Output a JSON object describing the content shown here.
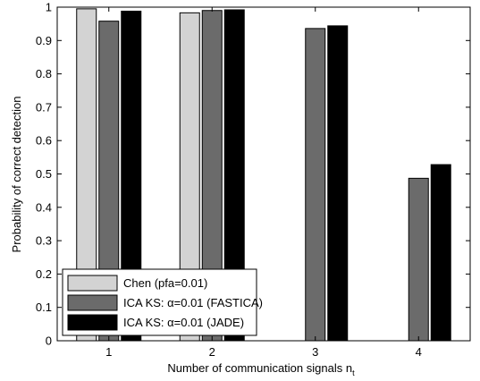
{
  "chart_data": {
    "type": "bar",
    "categories": [
      "1",
      "2",
      "3",
      "4"
    ],
    "xlabel": "Number of communication signals n",
    "xlabel_subscript": "t",
    "ylabel": "Probability of correct detection",
    "ylim": [
      0,
      1
    ],
    "yticks": [
      "0",
      "0.1",
      "0.2",
      "0.3",
      "0.4",
      "0.5",
      "0.6",
      "0.7",
      "0.8",
      "0.9",
      "1"
    ],
    "grid": false,
    "legend_position": "bottom-left",
    "series": [
      {
        "name": "Chen (pfa=0.01)",
        "color": "#d3d3d3",
        "values": [
          0.995,
          0.983,
          null,
          null
        ]
      },
      {
        "name": "ICA KS: α=0.01 (FASTICA)",
        "color": "#6b6b6b",
        "values": [
          0.958,
          0.99,
          0.936,
          0.487
        ]
      },
      {
        "name": "ICA KS: α=0.01 (JADE)",
        "color": "#000000",
        "values": [
          0.988,
          0.992,
          0.944,
          0.528
        ]
      }
    ]
  }
}
